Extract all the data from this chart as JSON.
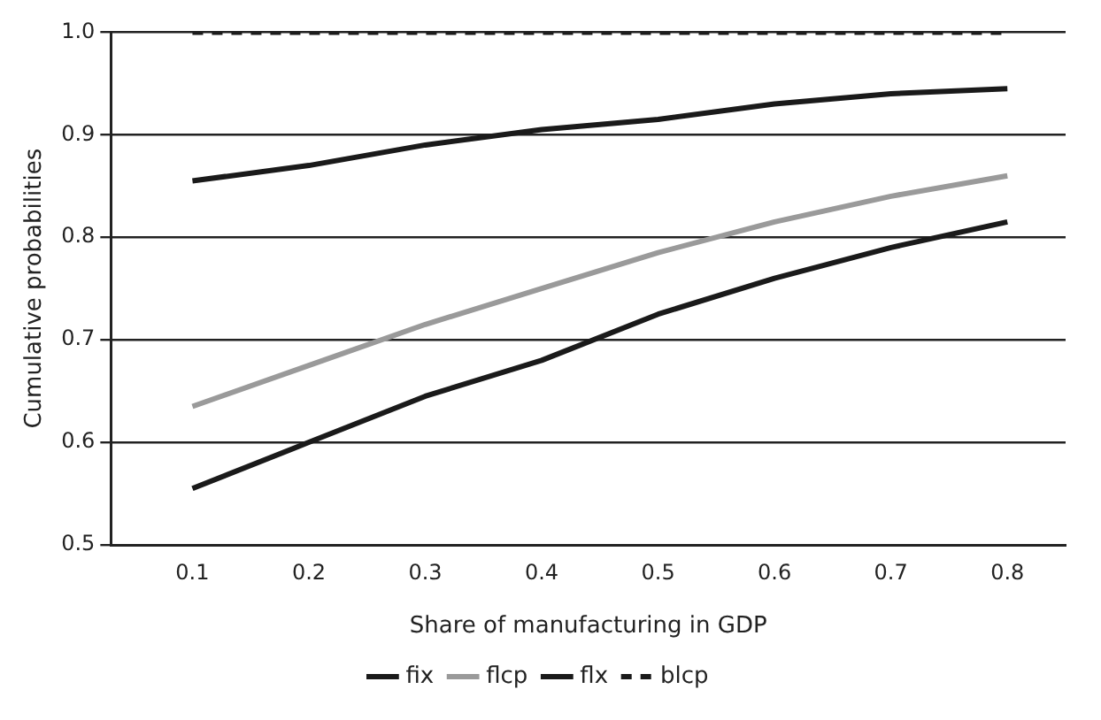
{
  "chart_data": {
    "type": "line",
    "xlabel": "Share of manufacturing in GDP",
    "ylabel": "Cumulative probabilities",
    "x": [
      0.1,
      0.2,
      0.3,
      0.4,
      0.5,
      0.6,
      0.7,
      0.8
    ],
    "series": [
      {
        "name": "fix",
        "color": "#1a1a1a",
        "values": [
          0.855,
          0.87,
          0.89,
          0.905,
          0.915,
          0.93,
          0.94,
          0.945
        ]
      },
      {
        "name": "flcp",
        "color": "#9a9a9a",
        "values": [
          0.635,
          0.675,
          0.715,
          0.75,
          0.785,
          0.815,
          0.84,
          0.86
        ]
      },
      {
        "name": "flx",
        "color": "#1a1a1a",
        "values": [
          0.555,
          0.6,
          0.645,
          0.68,
          0.725,
          0.76,
          0.79,
          0.815
        ]
      },
      {
        "name": "blcp",
        "color": "#1a1a1a",
        "line_style": "dashed",
        "values": [
          1,
          1,
          1,
          1,
          1,
          1,
          1,
          1
        ]
      }
    ],
    "xlim": [
      0.03,
      0.85
    ],
    "xticks": [
      0.1,
      0.2,
      0.3,
      0.4,
      0.5,
      0.6,
      0.7,
      0.8
    ],
    "ylim": [
      0.5,
      1
    ],
    "yticks": [
      0.5,
      0.6,
      0.7,
      0.8,
      0.9,
      {
        "value": 1,
        "label": "1.0"
      }
    ],
    "grid": "y",
    "legend": "bottom",
    "marker": "none",
    "line_style": "solid"
  }
}
